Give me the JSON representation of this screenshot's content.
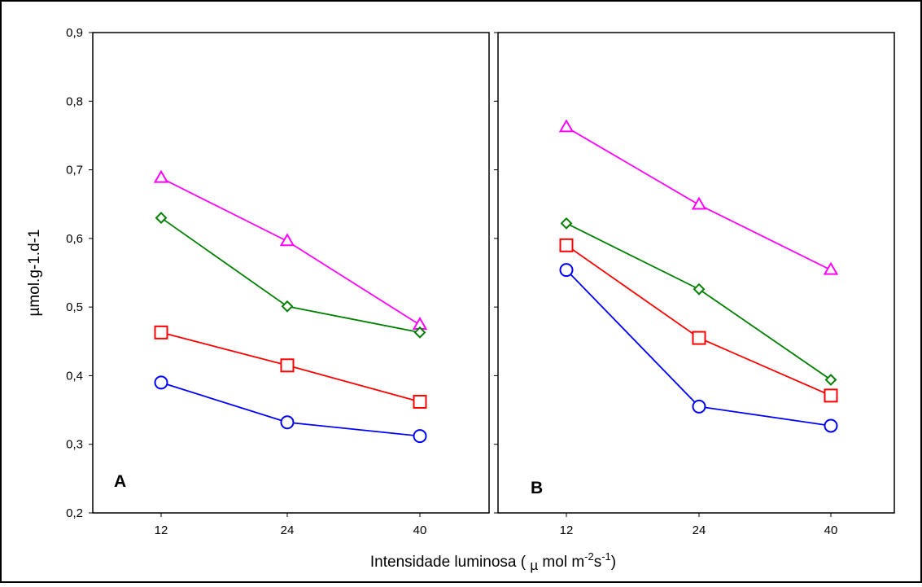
{
  "chart_data": [
    {
      "type": "line",
      "panel": "A",
      "categories": [
        "12",
        "24",
        "40"
      ],
      "ylim": [
        0.2,
        0.9
      ],
      "grid": false,
      "series": [
        {
          "values": [
            0.688,
            0.596,
            0.474
          ],
          "marker": "triangle",
          "color": "#ff00ff"
        },
        {
          "values": [
            0.63,
            0.501,
            0.463
          ],
          "marker": "diamond",
          "color": "#008000"
        },
        {
          "values": [
            0.463,
            0.415,
            0.362
          ],
          "marker": "square",
          "color": "#ff0000"
        },
        {
          "values": [
            0.39,
            0.332,
            0.312
          ],
          "marker": "circle",
          "color": "#0000ff"
        }
      ]
    },
    {
      "type": "line",
      "panel": "B",
      "categories": [
        "12",
        "24",
        "40"
      ],
      "ylim": [
        0.2,
        0.9
      ],
      "grid": false,
      "series": [
        {
          "values": [
            0.762,
            0.649,
            0.554
          ],
          "marker": "triangle",
          "color": "#ff00ff"
        },
        {
          "values": [
            0.622,
            0.526,
            0.394
          ],
          "marker": "diamond",
          "color": "#008000"
        },
        {
          "values": [
            0.59,
            0.455,
            0.371
          ],
          "marker": "square",
          "color": "#ff0000"
        },
        {
          "values": [
            0.554,
            0.355,
            0.327
          ],
          "marker": "circle",
          "color": "#0000ff"
        }
      ]
    }
  ],
  "labels": {
    "panel_a": "A",
    "panel_b": "B",
    "ylabel": "µmol.g-1.d-1",
    "xlabel_prefix": "Intensidade luminosa ( ",
    "xlabel_mu": "µ",
    "xlabel_unit": " mol m",
    "xlabel_sup1": "-2",
    "xlabel_s": "s",
    "xlabel_sup2": "-1",
    "xlabel_close": ")"
  },
  "yticks": [
    "0,2",
    "0,3",
    "0,4",
    "0,5",
    "0,6",
    "0,7",
    "0,8",
    "0,9"
  ],
  "xticks": [
    "12",
    "24",
    "40"
  ]
}
